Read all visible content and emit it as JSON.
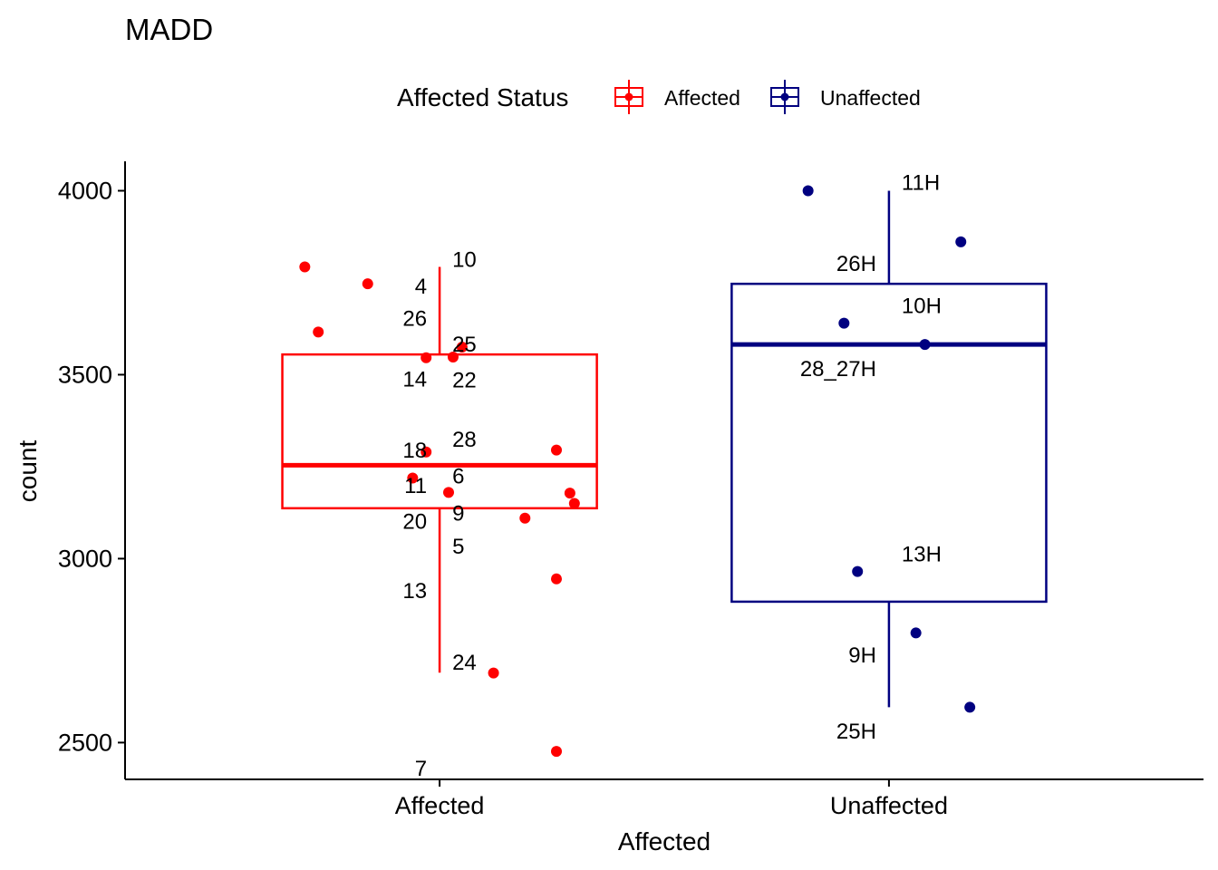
{
  "chart_data": {
    "type": "boxplot",
    "title": "MADD",
    "xlabel": "Affected",
    "ylabel": "count",
    "ylim": [
      2400,
      4080
    ],
    "yticks": [
      2500,
      3000,
      3500,
      4000
    ],
    "categories": [
      "Affected",
      "Unaffected"
    ],
    "legend": {
      "title": "Affected Status",
      "position": "top",
      "items": [
        {
          "label": "Affected",
          "color": "#ff0000"
        },
        {
          "label": "Unaffected",
          "color": "#000080"
        }
      ]
    },
    "groups": [
      {
        "name": "Affected",
        "color": "#ff0000",
        "box": {
          "whisker_low": 2690,
          "q1": 3137,
          "median": 3254,
          "q3": 3555,
          "whisker_high": 3793
        },
        "points": [
          {
            "label": "10",
            "value": 3793,
            "jitter": -0.3,
            "label_dx": 0.04
          },
          {
            "label": "4",
            "value": 3747,
            "jitter": -0.16,
            "label_dx": -0.06
          },
          {
            "label": "26",
            "value": 3616,
            "jitter": -0.27,
            "label_dx": -0.06
          },
          {
            "label": "25",
            "value": 3575,
            "jitter": 0.05,
            "label_dx": 0.04
          },
          {
            "label": "14",
            "value": 3546,
            "jitter": -0.03,
            "label_dx": -0.06
          },
          {
            "label": "22",
            "value": 3548,
            "jitter": 0.03,
            "label_dx": 0.04
          },
          {
            "label": "28",
            "value": 3295,
            "jitter": 0.26,
            "label_dx": 0.04
          },
          {
            "label": "18",
            "value": 3290,
            "jitter": -0.03,
            "label_dx": -0.06
          },
          {
            "label": "11",
            "value": 3219,
            "jitter": -0.06,
            "label_dx": -0.06
          },
          {
            "label": "6",
            "value": 3180,
            "jitter": 0.02,
            "label_dx": 0.04
          },
          {
            "label": "9",
            "value": 3178,
            "jitter": 0.29,
            "label_dx": 0.04
          },
          {
            "label": "20",
            "value": 3150,
            "jitter": 0.3,
            "label_dx": -0.06
          },
          {
            "label": "5",
            "value": 3110,
            "jitter": 0.19,
            "label_dx": 0.04
          },
          {
            "label": "13",
            "value": 2945,
            "jitter": 0.26,
            "label_dx": -0.06
          },
          {
            "label": "24",
            "value": 2689,
            "jitter": 0.12,
            "label_dx": 0.04
          },
          {
            "label": "7",
            "value": 2476,
            "jitter": 0.26,
            "label_dx": -0.06
          }
        ],
        "label_positions": [
          {
            "label": "10",
            "value": 3815,
            "side": "right"
          },
          {
            "label": "4",
            "value": 3742,
            "side": "left"
          },
          {
            "label": "26",
            "value": 3655,
            "side": "left"
          },
          {
            "label": "25",
            "value": 3585,
            "side": "right"
          },
          {
            "label": "14",
            "value": 3490,
            "side": "left"
          },
          {
            "label": "22",
            "value": 3488,
            "side": "right"
          },
          {
            "label": "28",
            "value": 3326,
            "side": "right"
          },
          {
            "label": "18",
            "value": 3297,
            "side": "left"
          },
          {
            "label": "6",
            "value": 3226,
            "side": "right"
          },
          {
            "label": "11",
            "value": 3200,
            "side": "left"
          },
          {
            "label": "9",
            "value": 3126,
            "side": "right"
          },
          {
            "label": "20",
            "value": 3103,
            "side": "left"
          },
          {
            "label": "5",
            "value": 3036,
            "side": "right"
          },
          {
            "label": "13",
            "value": 2915,
            "side": "left"
          },
          {
            "label": "24",
            "value": 2720,
            "side": "right"
          },
          {
            "label": "7",
            "value": 2432,
            "side": "left"
          }
        ]
      },
      {
        "name": "Unaffected",
        "color": "#000080",
        "box": {
          "whisker_low": 2596,
          "q1": 2883,
          "median": 3582,
          "q3": 3747,
          "whisker_high": 4000
        },
        "points": [
          {
            "label": "11H",
            "value": 4000,
            "jitter": -0.18
          },
          {
            "label": "26H",
            "value": 3861,
            "jitter": 0.16
          },
          {
            "label": "10H",
            "value": 3640,
            "jitter": -0.1
          },
          {
            "label": "28_27H",
            "value": 3582,
            "jitter": 0.08
          },
          {
            "label": "13H",
            "value": 2965,
            "jitter": -0.07
          },
          {
            "label": "9H",
            "value": 2798,
            "jitter": 0.06
          },
          {
            "label": "25H",
            "value": 2596,
            "jitter": 0.18
          }
        ],
        "label_positions": [
          {
            "label": "11H",
            "value": 4024,
            "side": "right"
          },
          {
            "label": "26H",
            "value": 3804,
            "side": "left"
          },
          {
            "label": "10H",
            "value": 3690,
            "side": "right"
          },
          {
            "label": "28_27H",
            "value": 3518,
            "side": "left"
          },
          {
            "label": "13H",
            "value": 3014,
            "side": "right"
          },
          {
            "label": "9H",
            "value": 2740,
            "side": "left"
          },
          {
            "label": "25H",
            "value": 2533,
            "side": "left"
          }
        ]
      }
    ]
  }
}
